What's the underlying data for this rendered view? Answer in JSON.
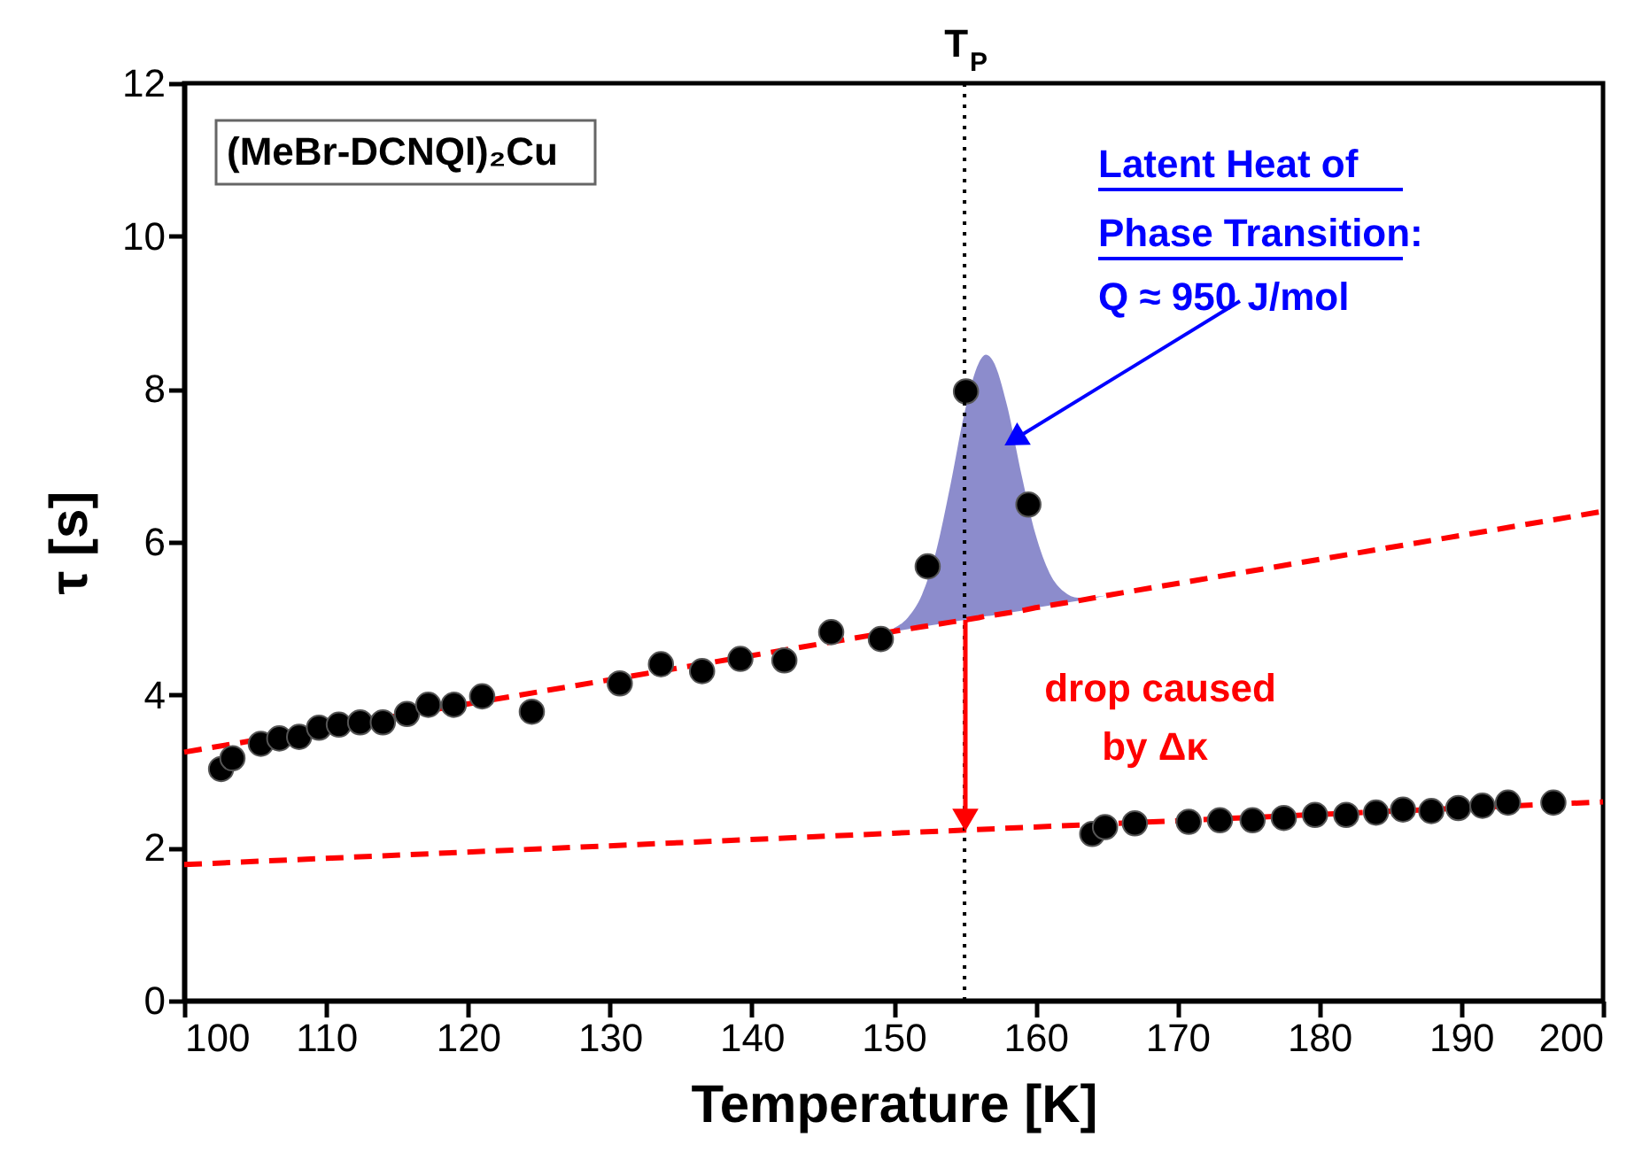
{
  "chart_data": {
    "type": "scatter",
    "xlabel": "Temperature [K]",
    "ylabel": "τ [s]",
    "xlim": [
      100,
      200
    ],
    "xticks": [
      100,
      110,
      120,
      130,
      140,
      150,
      160,
      170,
      180,
      190,
      200
    ],
    "ylim": [
      0,
      12
    ],
    "yticks": [
      0,
      2,
      4,
      6,
      8,
      10,
      12
    ],
    "grid": false,
    "series": [
      {
        "type": "line",
        "color": "#ff0000",
        "line_style": "dashed",
        "x": [
          100,
          150,
          151,
          152,
          153,
          154,
          155,
          156,
          156.5,
          157,
          158,
          159,
          160,
          161,
          162,
          163,
          165,
          200
        ],
        "values": [
          3.25,
          4.83,
          4.86,
          4.89,
          4.92,
          4.95,
          4.98,
          5.01,
          5.03,
          5.04,
          5.07,
          5.1,
          5.14,
          5.17,
          5.2,
          5.23,
          5.3,
          6.4
        ],
        "lower": [
          null,
          4.83,
          4.86,
          4.89,
          4.92,
          4.95,
          4.98,
          5.01,
          5.03,
          5.04,
          5.07,
          5.1,
          5.14,
          5.17,
          5.2,
          5.23,
          5.3,
          null
        ],
        "upper": [
          null,
          4.87,
          5.01,
          5.31,
          5.88,
          6.74,
          7.69,
          8.34,
          8.45,
          8.37,
          7.78,
          6.89,
          6.1,
          5.59,
          5.35,
          5.27,
          5.3,
          null
        ]
      },
      {
        "type": "line",
        "color": "#ff0000",
        "line_style": "dashed",
        "x": [
          100,
          200
        ],
        "values": [
          1.78,
          2.6
        ]
      },
      {
        "color": "#000000",
        "marker": "circle",
        "x": [
          102.6,
          103.4,
          105.4,
          106.7,
          108.1,
          109.5,
          110.9,
          112.4,
          114.0,
          115.7,
          117.2,
          119.0,
          121.0,
          124.5,
          130.7,
          133.6,
          136.5,
          139.2,
          142.3,
          145.6,
          149.1,
          152.4,
          155.1,
          159.5,
          164.0,
          164.9,
          167.0,
          170.8,
          173.0,
          175.3,
          177.5,
          179.7,
          181.9,
          184.0,
          185.9,
          187.9,
          189.8,
          191.5,
          193.3,
          196.5
        ],
        "values": [
          3.03,
          3.17,
          3.36,
          3.43,
          3.45,
          3.57,
          3.61,
          3.64,
          3.64,
          3.75,
          3.87,
          3.87,
          3.98,
          3.78,
          4.15,
          4.4,
          4.31,
          4.47,
          4.45,
          4.82,
          4.73,
          5.68,
          7.97,
          6.49,
          2.18,
          2.27,
          2.32,
          2.34,
          2.36,
          2.36,
          2.39,
          2.43,
          2.43,
          2.46,
          2.5,
          2.48,
          2.52,
          2.55,
          2.59,
          2.59
        ]
      }
    ],
    "ref_lines": [
      {
        "axis": "x",
        "value": 155,
        "label": "T$_{P}$",
        "color": "#000000",
        "line_style": "dotted"
      }
    ],
    "annotations": [
      "(MeBr-DCNQI)₂Cu",
      "Latent Heat of",
      {
        "text": "Phase Transition:",
        "x": 158.5,
        "y": 7.34
      },
      "Q ≈ 950 J/mol",
      "drop caused",
      "by Δκ"
    ]
  }
}
